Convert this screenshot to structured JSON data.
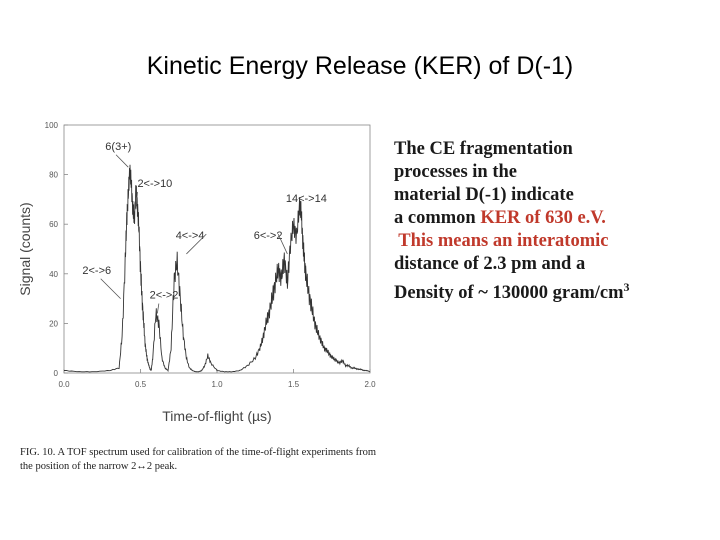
{
  "slide": {
    "title": "Kinetic Energy Release (KER) of D(-1)"
  },
  "text_block": {
    "line1": "The CE fragmentation",
    "line2": "processes in the",
    "line3": "material D(-1) indicate",
    "line4_pre": "a common ",
    "line4_highlight": "KER of 630 e.V.",
    "line5": " This means an interatomic",
    "line6": "distance of 2.3 pm and a",
    "line7_pre": "Density of ~ 130000 gram/cm",
    "line7_sup": "3",
    "highlight_color": "#c0392b"
  },
  "caption": {
    "label": "FIG. 10.",
    "text": " A TOF spectrum used for calibration of the time-of-flight experiments from the position of the narrow 2↔2 peak."
  },
  "chart_data": {
    "type": "line",
    "xlabel": "Time-of-flight (µs)",
    "ylabel": "Signal (counts)",
    "xlim": [
      0.0,
      2.0
    ],
    "ylim": [
      0,
      100
    ],
    "x_ticks": [
      "0.0",
      "0.5",
      "1.0",
      "1.5",
      "2.0"
    ],
    "y_ticks": [
      "0",
      "20",
      "40",
      "60",
      "80",
      "100"
    ],
    "series": [
      {
        "values_x": [
          0.0,
          0.1,
          0.2,
          0.3,
          0.36,
          0.38,
          0.4,
          0.41,
          0.42,
          0.43,
          0.44,
          0.45,
          0.46,
          0.47,
          0.48,
          0.49,
          0.5,
          0.51,
          0.52,
          0.53,
          0.54,
          0.55,
          0.56,
          0.57,
          0.58,
          0.6,
          0.62,
          0.64,
          0.66,
          0.68,
          0.7,
          0.72,
          0.74,
          0.76,
          0.78,
          0.8,
          0.82,
          0.84,
          0.86,
          0.88,
          0.9,
          0.92,
          0.94,
          0.96,
          1.0,
          1.05,
          1.1,
          1.15,
          1.2,
          1.25,
          1.28,
          1.3,
          1.32,
          1.34,
          1.36,
          1.38,
          1.4,
          1.42,
          1.44,
          1.46,
          1.48,
          1.5,
          1.52,
          1.54,
          1.55,
          1.56,
          1.57,
          1.58,
          1.6,
          1.62,
          1.64,
          1.66,
          1.68,
          1.7,
          1.72,
          1.74,
          1.76,
          1.78,
          1.8,
          1.82,
          1.84,
          1.86,
          1.88,
          1.9,
          1.92,
          1.94,
          1.96,
          1.98,
          2.0
        ],
        "values_y": [
          1,
          0.5,
          0.5,
          1,
          2,
          15,
          45,
          62,
          72,
          82,
          76,
          66,
          62,
          74,
          67,
          58,
          42,
          30,
          21,
          12,
          7,
          4,
          2,
          1,
          6,
          24,
          20,
          6,
          2,
          1,
          10,
          38,
          45,
          30,
          15,
          6,
          2,
          1,
          0.5,
          0.5,
          1,
          3,
          7,
          4,
          1,
          0.5,
          0.5,
          1,
          3,
          6,
          10,
          14,
          20,
          24,
          30,
          36,
          42,
          38,
          46,
          36,
          52,
          60,
          55,
          68,
          65,
          54,
          46,
          40,
          32,
          26,
          20,
          16,
          13,
          10,
          9,
          7,
          6,
          5,
          4,
          5,
          3,
          3,
          2,
          2,
          1.5,
          1.5,
          1,
          1,
          0.5
        ]
      }
    ],
    "annotations": [
      "6(3+)",
      "2<->10",
      "14<->14",
      "4<->4",
      "6<->2",
      "2<->6",
      "2<->2"
    ]
  }
}
